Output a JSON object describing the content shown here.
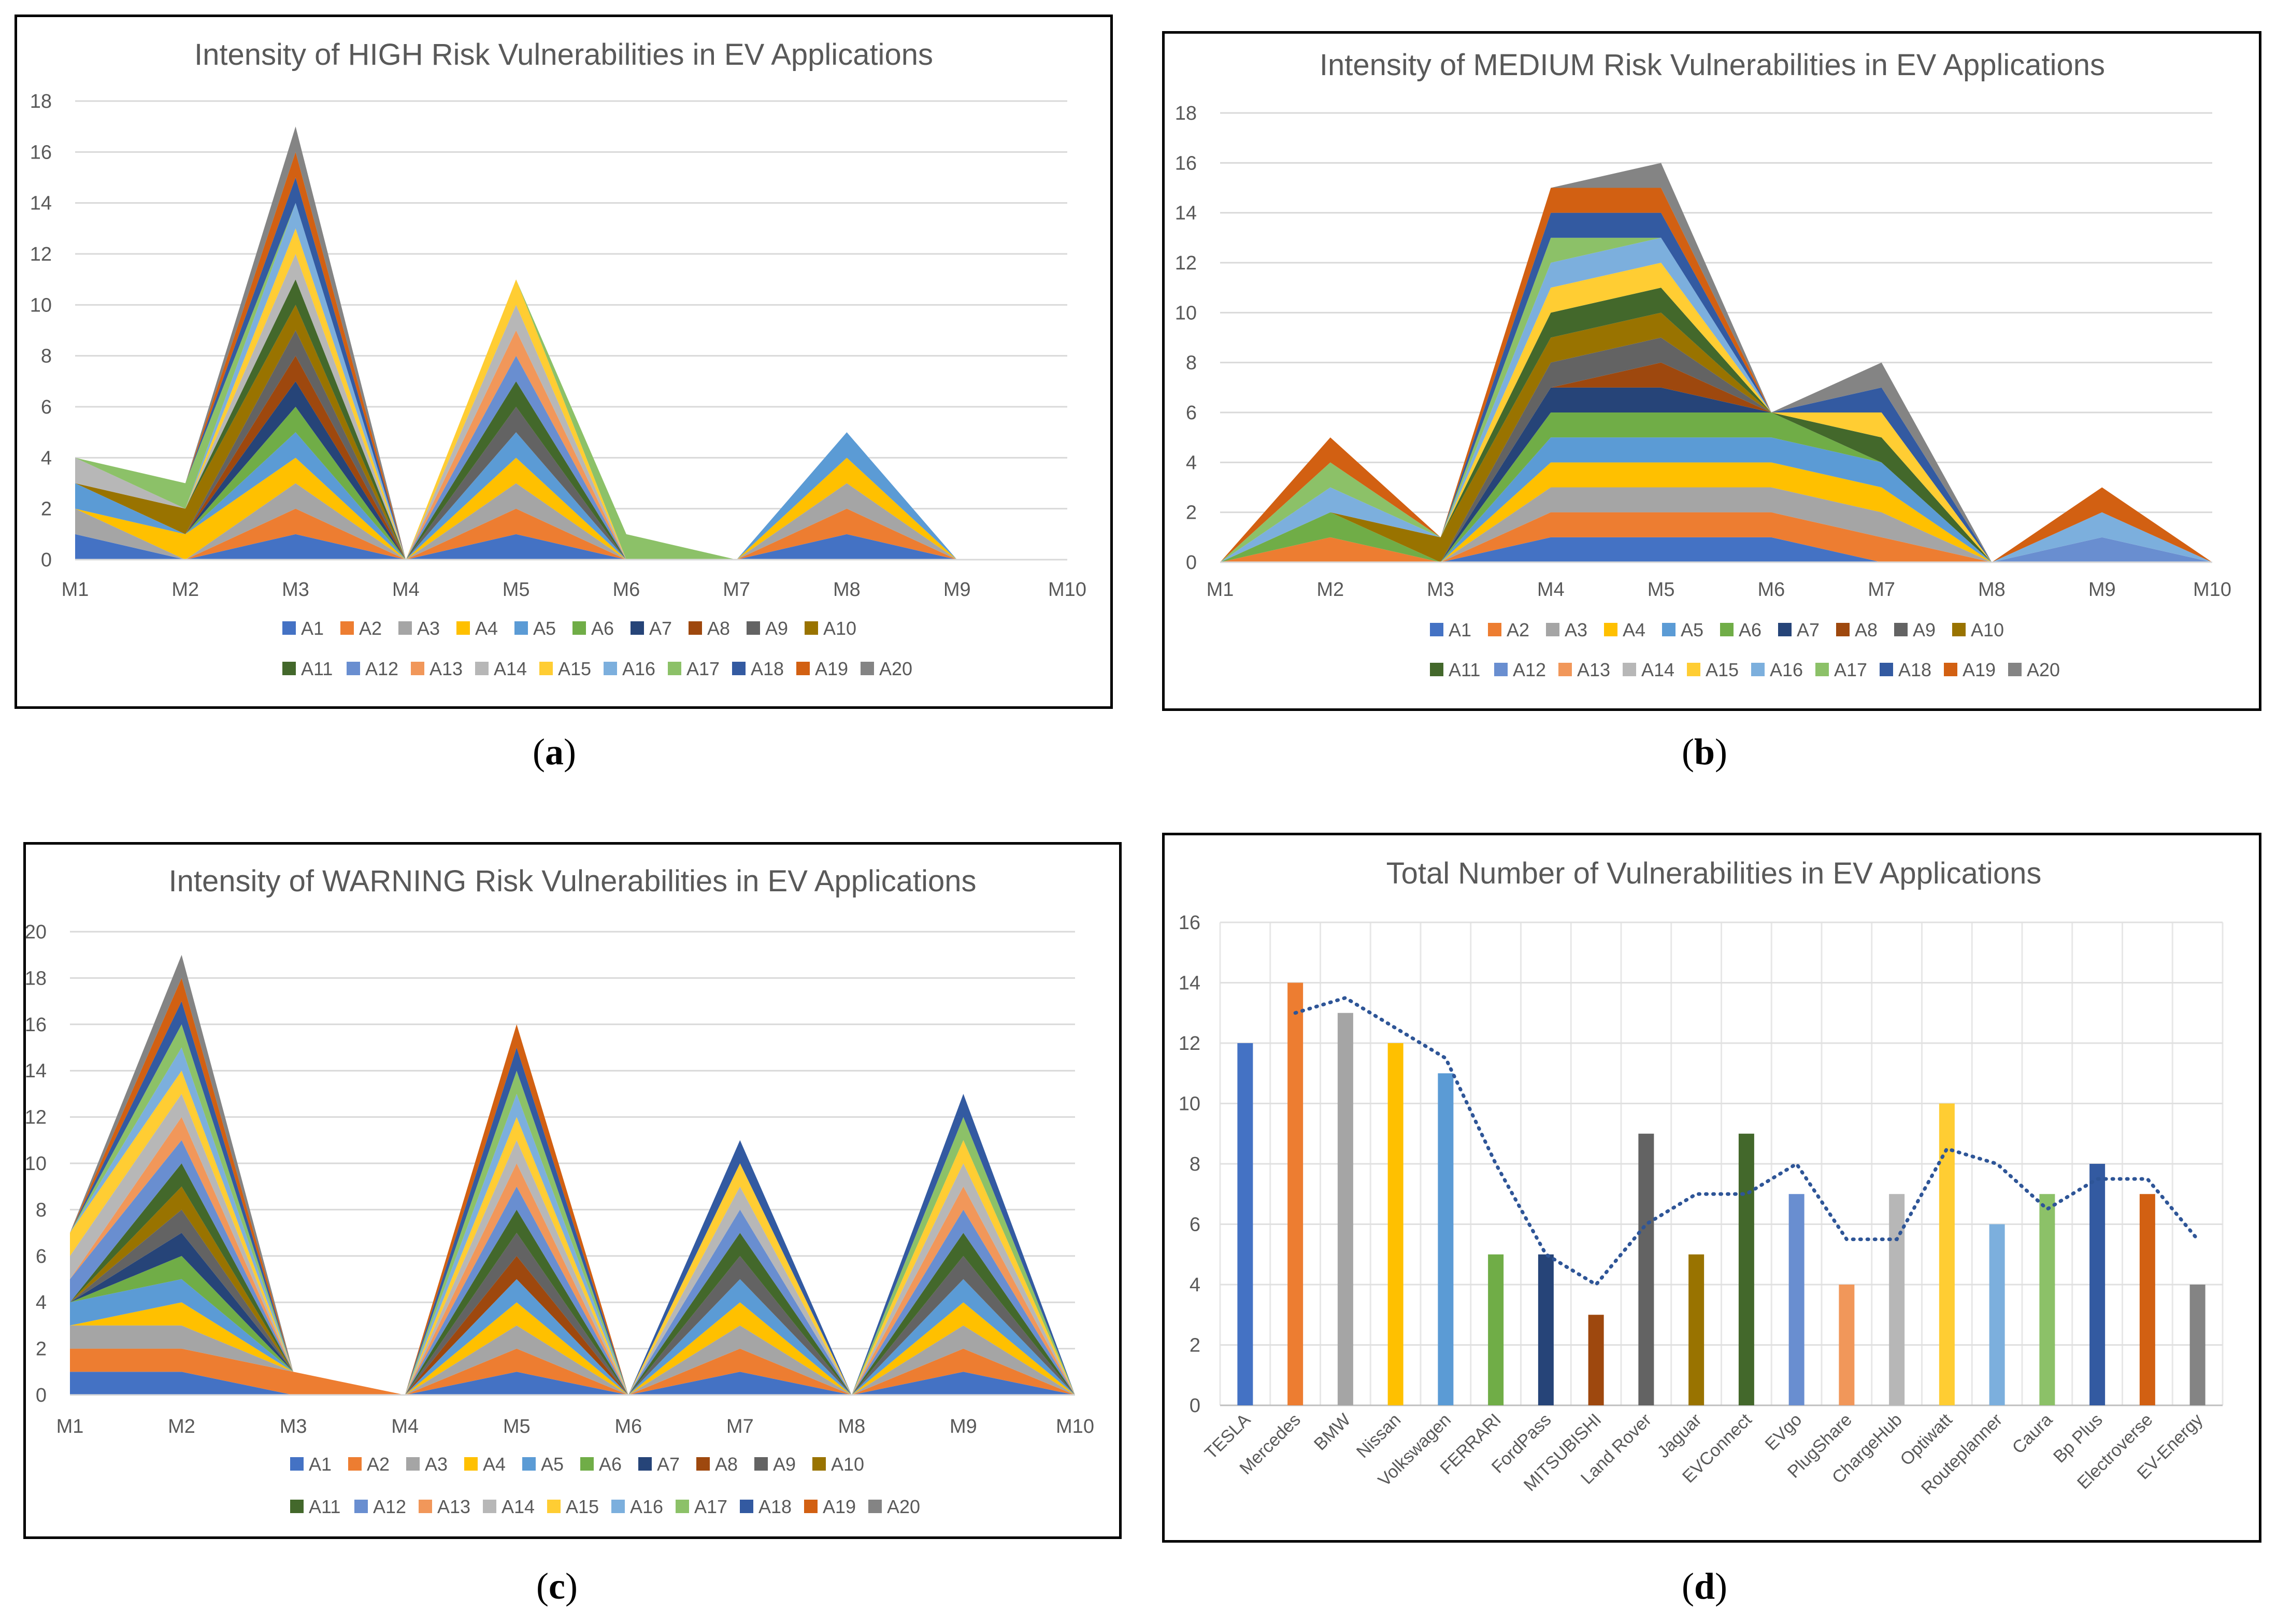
{
  "subfigure_labels": [
    "a",
    "b",
    "c",
    "d"
  ],
  "chart_data": [
    {
      "type": "area",
      "stacked": true,
      "title": "Intensity of HIGH Risk Vulnerabilities in EV Applications",
      "categories": [
        "M1",
        "M2",
        "M3",
        "M4",
        "M5",
        "M6",
        "M7",
        "M8",
        "M9",
        "M10"
      ],
      "ylim": [
        0,
        18
      ],
      "yticks": [
        0,
        2,
        4,
        6,
        8,
        10,
        12,
        14,
        16,
        18
      ],
      "legend": "bottom",
      "series": [
        {
          "name": "A1",
          "values": [
            1,
            0,
            1,
            0,
            1,
            0,
            0,
            1,
            0,
            0
          ]
        },
        {
          "name": "A2",
          "values": [
            0,
            0,
            1,
            0,
            1,
            0,
            0,
            1,
            0,
            0
          ]
        },
        {
          "name": "A3",
          "values": [
            1,
            0,
            1,
            0,
            1,
            0,
            0,
            1,
            0,
            0
          ]
        },
        {
          "name": "A4",
          "values": [
            0,
            1,
            1,
            0,
            1,
            0,
            0,
            1,
            0,
            0
          ]
        },
        {
          "name": "A5",
          "values": [
            1,
            0,
            1,
            0,
            1,
            0,
            0,
            1,
            0,
            0
          ]
        },
        {
          "name": "A6",
          "values": [
            0,
            0,
            1,
            0,
            0,
            0,
            0,
            0,
            0,
            0
          ]
        },
        {
          "name": "A7",
          "values": [
            0,
            0,
            1,
            0,
            0,
            0,
            0,
            0,
            0,
            0
          ]
        },
        {
          "name": "A8",
          "values": [
            0,
            0,
            1,
            0,
            0,
            0,
            0,
            0,
            0,
            0
          ]
        },
        {
          "name": "A9",
          "values": [
            0,
            0,
            1,
            0,
            1,
            0,
            0,
            0,
            0,
            0
          ]
        },
        {
          "name": "A10",
          "values": [
            0,
            1,
            1,
            0,
            0,
            0,
            0,
            0,
            0,
            0
          ]
        },
        {
          "name": "A11",
          "values": [
            0,
            0,
            1,
            0,
            1,
            0,
            0,
            0,
            0,
            0
          ]
        },
        {
          "name": "A12",
          "values": [
            0,
            0,
            0,
            0,
            1,
            0,
            0,
            0,
            0,
            0
          ]
        },
        {
          "name": "A13",
          "values": [
            0,
            0,
            0,
            0,
            1,
            0,
            0,
            0,
            0,
            0
          ]
        },
        {
          "name": "A14",
          "values": [
            1,
            0,
            1,
            0,
            1,
            0,
            0,
            0,
            0,
            0
          ]
        },
        {
          "name": "A15",
          "values": [
            0,
            0,
            1,
            0,
            1,
            0,
            0,
            0,
            0,
            0
          ]
        },
        {
          "name": "A16",
          "values": [
            0,
            0,
            1,
            0,
            0,
            0,
            0,
            0,
            0,
            0
          ]
        },
        {
          "name": "A17",
          "values": [
            0,
            1,
            0,
            0,
            0,
            1,
            0,
            0,
            0,
            0
          ]
        },
        {
          "name": "A18",
          "values": [
            0,
            0,
            1,
            0,
            0,
            0,
            0,
            0,
            0,
            0
          ]
        },
        {
          "name": "A19",
          "values": [
            0,
            0,
            1,
            0,
            0,
            0,
            0,
            0,
            0,
            0
          ]
        },
        {
          "name": "A20",
          "values": [
            0,
            0,
            1,
            0,
            0,
            0,
            0,
            0,
            0,
            0
          ]
        }
      ]
    },
    {
      "type": "area",
      "stacked": true,
      "title": "Intensity of MEDIUM Risk Vulnerabilities in EV Applications",
      "categories": [
        "M1",
        "M2",
        "M3",
        "M4",
        "M5",
        "M6",
        "M7",
        "M8",
        "M9",
        "M10"
      ],
      "ylim": [
        0,
        18
      ],
      "yticks": [
        0,
        2,
        4,
        6,
        8,
        10,
        12,
        14,
        16,
        18
      ],
      "legend": "bottom",
      "series": [
        {
          "name": "A1",
          "values": [
            0,
            0,
            0,
            1,
            1,
            1,
            0,
            0,
            0,
            0
          ]
        },
        {
          "name": "A2",
          "values": [
            0,
            1,
            0,
            1,
            1,
            1,
            1,
            0,
            0,
            0
          ]
        },
        {
          "name": "A3",
          "values": [
            0,
            0,
            0,
            1,
            1,
            1,
            1,
            0,
            0,
            0
          ]
        },
        {
          "name": "A4",
          "values": [
            0,
            0,
            0,
            1,
            1,
            1,
            1,
            0,
            0,
            0
          ]
        },
        {
          "name": "A5",
          "values": [
            0,
            0,
            0,
            1,
            1,
            1,
            1,
            0,
            0,
            0
          ]
        },
        {
          "name": "A6",
          "values": [
            0,
            1,
            0,
            1,
            1,
            1,
            0,
            0,
            0,
            0
          ]
        },
        {
          "name": "A7",
          "values": [
            0,
            0,
            0,
            1,
            1,
            0,
            0,
            0,
            0,
            0
          ]
        },
        {
          "name": "A8",
          "values": [
            0,
            0,
            0,
            0,
            1,
            0,
            0,
            0,
            0,
            0
          ]
        },
        {
          "name": "A9",
          "values": [
            0,
            0,
            0,
            1,
            1,
            0,
            0,
            0,
            0,
            0
          ]
        },
        {
          "name": "A10",
          "values": [
            0,
            0,
            1,
            1,
            1,
            0,
            0,
            0,
            0,
            0
          ]
        },
        {
          "name": "A11",
          "values": [
            0,
            0,
            0,
            1,
            1,
            0,
            1,
            0,
            0,
            0
          ]
        },
        {
          "name": "A12",
          "values": [
            0,
            0,
            0,
            0,
            0,
            0,
            0,
            0,
            1,
            0
          ]
        },
        {
          "name": "A13",
          "values": [
            0,
            0,
            0,
            0,
            0,
            0,
            0,
            0,
            0,
            0
          ]
        },
        {
          "name": "A14",
          "values": [
            0,
            0,
            0,
            0,
            0,
            0,
            0,
            0,
            0,
            0
          ]
        },
        {
          "name": "A15",
          "values": [
            0,
            0,
            0,
            1,
            1,
            0,
            1,
            0,
            0,
            0
          ]
        },
        {
          "name": "A16",
          "values": [
            0,
            1,
            0,
            1,
            1,
            0,
            0,
            0,
            1,
            0
          ]
        },
        {
          "name": "A17",
          "values": [
            0,
            1,
            0,
            1,
            0,
            0,
            0,
            0,
            0,
            0
          ]
        },
        {
          "name": "A18",
          "values": [
            0,
            0,
            0,
            1,
            1,
            0,
            1,
            0,
            0,
            0
          ]
        },
        {
          "name": "A19",
          "values": [
            0,
            1,
            0,
            1,
            1,
            0,
            0,
            0,
            1,
            0
          ]
        },
        {
          "name": "A20",
          "values": [
            0,
            0,
            0,
            0,
            1,
            0,
            1,
            0,
            0,
            0
          ]
        }
      ]
    },
    {
      "type": "area",
      "stacked": true,
      "title": "Intensity of WARNING Risk Vulnerabilities in EV Applications",
      "categories": [
        "M1",
        "M2",
        "M3",
        "M4",
        "M5",
        "M6",
        "M7",
        "M8",
        "M9",
        "M10"
      ],
      "ylim": [
        0,
        20
      ],
      "yticks": [
        0,
        2,
        4,
        6,
        8,
        10,
        12,
        14,
        16,
        18,
        20
      ],
      "legend": "bottom",
      "series": [
        {
          "name": "A1",
          "values": [
            1,
            1,
            0,
            0,
            1,
            0,
            1,
            0,
            1,
            0
          ]
        },
        {
          "name": "A2",
          "values": [
            1,
            1,
            1,
            0,
            1,
            0,
            1,
            0,
            1,
            0
          ]
        },
        {
          "name": "A3",
          "values": [
            1,
            1,
            0,
            0,
            1,
            0,
            1,
            0,
            1,
            0
          ]
        },
        {
          "name": "A4",
          "values": [
            0,
            1,
            0,
            0,
            1,
            0,
            1,
            0,
            1,
            0
          ]
        },
        {
          "name": "A5",
          "values": [
            1,
            1,
            0,
            0,
            1,
            0,
            1,
            0,
            1,
            0
          ]
        },
        {
          "name": "A6",
          "values": [
            0,
            1,
            0,
            0,
            0,
            0,
            0,
            0,
            0,
            0
          ]
        },
        {
          "name": "A7",
          "values": [
            0,
            1,
            0,
            0,
            0,
            0,
            0,
            0,
            0,
            0
          ]
        },
        {
          "name": "A8",
          "values": [
            0,
            0,
            0,
            0,
            1,
            0,
            0,
            0,
            0,
            0
          ]
        },
        {
          "name": "A9",
          "values": [
            0,
            1,
            0,
            0,
            1,
            0,
            1,
            0,
            1,
            0
          ]
        },
        {
          "name": "A10",
          "values": [
            0,
            1,
            0,
            0,
            0,
            0,
            0,
            0,
            0,
            0
          ]
        },
        {
          "name": "A11",
          "values": [
            0,
            1,
            0,
            0,
            1,
            0,
            1,
            0,
            1,
            0
          ]
        },
        {
          "name": "A12",
          "values": [
            1,
            1,
            0,
            0,
            1,
            0,
            1,
            0,
            1,
            0
          ]
        },
        {
          "name": "A13",
          "values": [
            0,
            1,
            0,
            0,
            1,
            0,
            0,
            0,
            1,
            0
          ]
        },
        {
          "name": "A14",
          "values": [
            1,
            1,
            0,
            0,
            1,
            0,
            1,
            0,
            1,
            0
          ]
        },
        {
          "name": "A15",
          "values": [
            1,
            1,
            0,
            0,
            1,
            0,
            1,
            0,
            1,
            0
          ]
        },
        {
          "name": "A16",
          "values": [
            0,
            1,
            0,
            0,
            1,
            0,
            0,
            0,
            0,
            0
          ]
        },
        {
          "name": "A17",
          "values": [
            0,
            1,
            0,
            0,
            1,
            0,
            0,
            0,
            1,
            0
          ]
        },
        {
          "name": "A18",
          "values": [
            0,
            1,
            0,
            0,
            1,
            0,
            1,
            0,
            1,
            0
          ]
        },
        {
          "name": "A19",
          "values": [
            0,
            1,
            0,
            0,
            1,
            0,
            0,
            0,
            0,
            0
          ]
        },
        {
          "name": "A20",
          "values": [
            0,
            1,
            0,
            0,
            0,
            0,
            0,
            0,
            0,
            0
          ]
        }
      ]
    },
    {
      "type": "bar",
      "title": "Total Number of Vulnerabilities in EV Applications",
      "categories": [
        "TESLA",
        "Mercedes",
        "BMW",
        "Nissan",
        "Volkswagen",
        "FERRARI",
        "FordPass",
        "MITSUBISHI",
        "Land Rover",
        "Jaguar",
        "EVConnect",
        "EVgo",
        "PlugShare",
        "ChargeHub",
        "Optiwatt",
        "Routeplanner",
        "Caura",
        "Bp Plus",
        "Electroverse",
        "EV-Energy"
      ],
      "values": [
        12,
        14,
        13,
        12,
        11,
        5,
        5,
        3,
        9,
        5,
        9,
        7,
        4,
        7,
        10,
        6,
        7,
        8,
        7,
        4
      ],
      "ylim": [
        0,
        16
      ],
      "yticks": [
        0,
        2,
        4,
        6,
        8,
        10,
        12,
        14,
        16
      ],
      "trendline": "2-period moving average (dotted)",
      "legend": "none"
    }
  ],
  "colors": [
    "#4472c4",
    "#ed7d31",
    "#a5a5a5",
    "#ffc000",
    "#5b9bd5",
    "#70ad47",
    "#264478",
    "#9e480e",
    "#636363",
    "#997300",
    "#43682b",
    "#698ed0",
    "#f1975a",
    "#b7b7b7",
    "#ffcd33",
    "#7cafdd",
    "#8cc168",
    "#335aa1",
    "#d26012",
    "#848484"
  ],
  "trend_color": "#2e5597"
}
